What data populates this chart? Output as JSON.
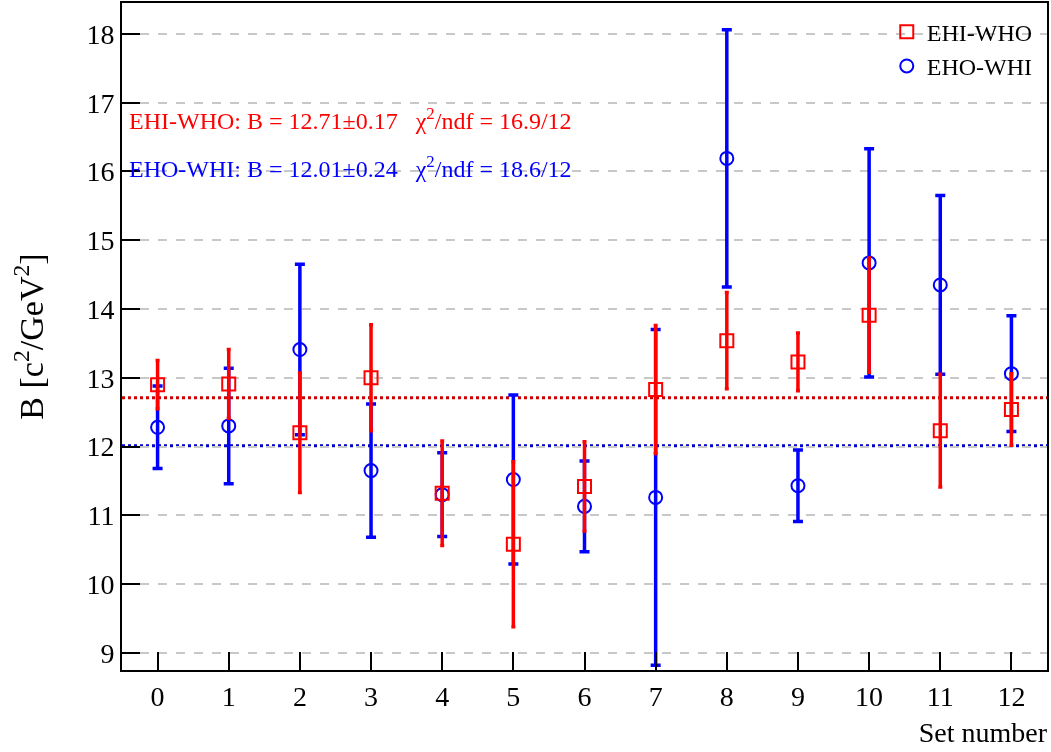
{
  "chart_data": {
    "type": "scatter",
    "xlabel": "Set number",
    "ylabel": "B [c$^{2}$/GeV$^{2}$]",
    "x": [
      0,
      1,
      2,
      3,
      4,
      5,
      6,
      7,
      8,
      9,
      10,
      11,
      12
    ],
    "series": [
      {
        "name": "EHI-WHO",
        "color": "#ff0000",
        "marker": "square",
        "values": [
          12.9,
          12.91,
          12.2,
          13.0,
          11.32,
          10.58,
          11.42,
          12.83,
          13.54,
          13.23,
          13.91,
          12.23,
          12.54
        ],
        "errors": [
          0.35,
          0.5,
          0.87,
          0.77,
          0.76,
          1.2,
          0.65,
          0.93,
          0.7,
          0.42,
          0.83,
          0.82,
          0.52
        ]
      },
      {
        "name": "EHO-WHI",
        "color": "#0000ff",
        "marker": "circle",
        "values": [
          12.28,
          12.3,
          13.41,
          11.65,
          11.3,
          11.52,
          11.13,
          11.26,
          16.19,
          11.43,
          14.67,
          14.35,
          13.06
        ],
        "errors": [
          0.6,
          0.84,
          1.24,
          0.97,
          0.61,
          1.23,
          0.66,
          2.44,
          1.87,
          0.52,
          1.66,
          1.3,
          0.84
        ]
      }
    ],
    "ref_lines": [
      {
        "axis": "y",
        "value": 12.71,
        "color": "#cc0000",
        "line_style": "dotted"
      },
      {
        "axis": "y",
        "value": 12.01,
        "color": "#0000cc",
        "line_style": "dotted"
      }
    ],
    "annotations": [
      "EHI-WHO: B = 12.71±0.17   χ$^{2}$/ndf = 16.9/12",
      "EHO-WHI: B = 12.01±0.24   χ$^{2}$/ndf = 18.6/12"
    ],
    "xlim": [
      -0.5,
      12.5
    ],
    "xticks": [
      0,
      1,
      2,
      3,
      4,
      5,
      6,
      7,
      8,
      9,
      10,
      11,
      12
    ],
    "ylim": [
      8.75,
      18.45
    ],
    "yticks": [
      9,
      10,
      11,
      12,
      13,
      14,
      15,
      16,
      17,
      18
    ],
    "grid": "y",
    "legend": "top right",
    "line_style": "none"
  }
}
